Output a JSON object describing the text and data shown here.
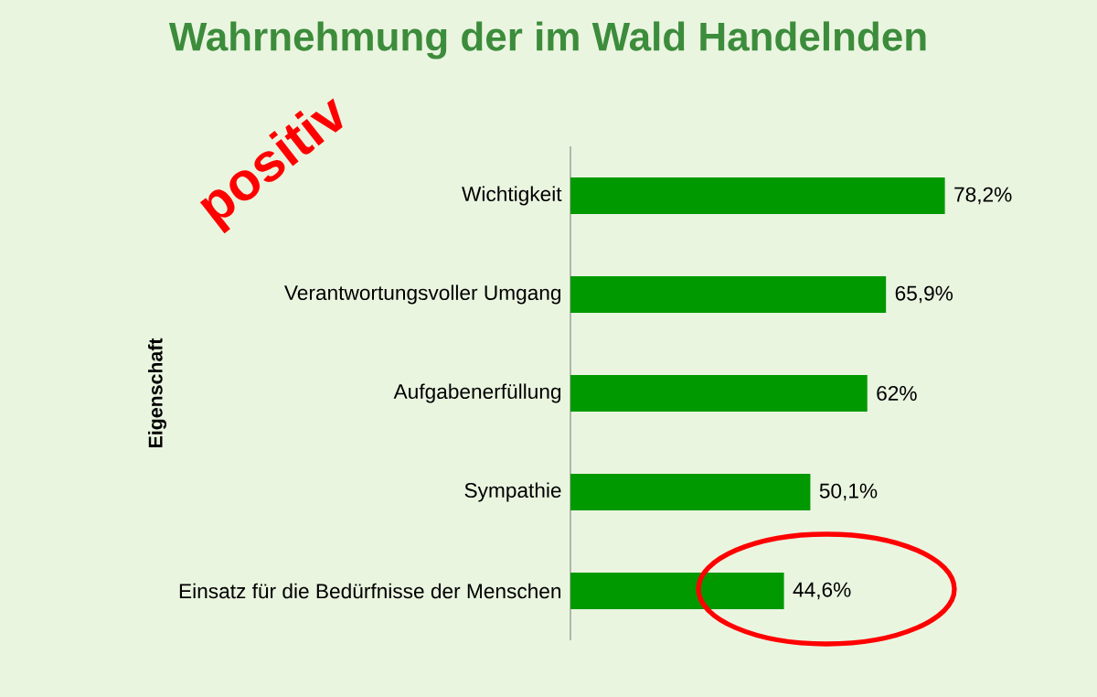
{
  "chart_data": {
    "type": "bar",
    "orientation": "horizontal",
    "title": "Wahrnehmung der im Wald Handelnden",
    "ylabel": "Eigenschaft",
    "categories": [
      "Wichtigkeit",
      "Verantwortungsvoller Umgang",
      "Aufgabenerfüllung",
      "Sympathie",
      "Einsatz für die Bedürfnisse der Menschen"
    ],
    "values": [
      78.2,
      65.9,
      62,
      50.1,
      44.6
    ],
    "value_labels": [
      "78,2%",
      "65,9%",
      "62%",
      "50,1%",
      "44,6%"
    ],
    "color": "#009900",
    "annotations": [
      "positiv"
    ]
  }
}
